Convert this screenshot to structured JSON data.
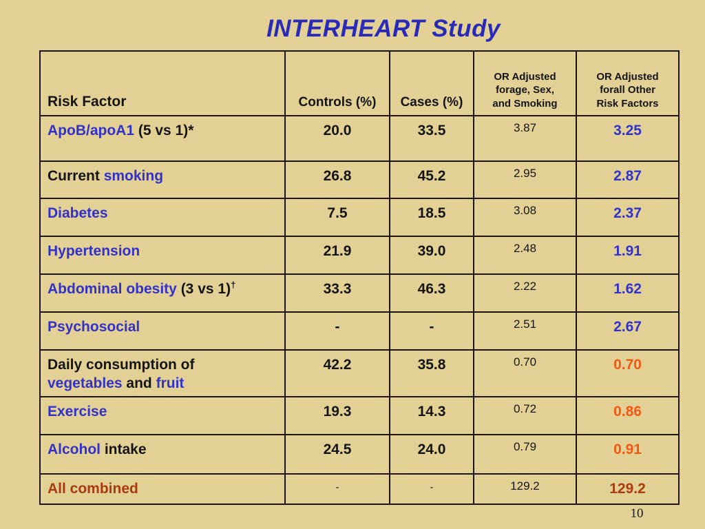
{
  "slide": {
    "title": "INTERHEART Study",
    "page_number": "10",
    "colors": {
      "background": "#e2d094",
      "title_blue": "#2a2ab8",
      "text_blue": "#3232c8",
      "orange": "#f05a14",
      "dark_red": "#a83c10",
      "black": "#141414",
      "border": "#1c1408"
    }
  },
  "table": {
    "headers": {
      "risk_factor": "Risk Factor",
      "controls": "Controls (%)",
      "cases": "Cases (%)",
      "or_age_sex_smoking": "OR Adjusted\nforage, Sex,\nand Smoking",
      "or_other": "OR Adjusted\nforall Other\nRisk Factors"
    },
    "rows": [
      {
        "label": [
          {
            "t": "ApoB/apoA1",
            "c": "blue"
          },
          {
            "t": " (5 vs 1)*",
            "c": "black"
          }
        ],
        "controls": "20.0",
        "cases": "33.5",
        "or1": "3.87",
        "or2": "3.25",
        "or2_color": "blue"
      },
      {
        "label": [
          {
            "t": "Current ",
            "c": "black"
          },
          {
            "t": "smoking",
            "c": "blue"
          }
        ],
        "controls": "26.8",
        "cases": "45.2",
        "or1": "2.95",
        "or2": "2.87",
        "or2_color": "blue"
      },
      {
        "label": [
          {
            "t": "Diabetes",
            "c": "blue"
          }
        ],
        "controls": "7.5",
        "cases": "18.5",
        "or1": "3.08",
        "or2": "2.37",
        "or2_color": "blue"
      },
      {
        "label": [
          {
            "t": "Hypertension",
            "c": "blue"
          }
        ],
        "controls": "21.9",
        "cases": "39.0",
        "or1": "2.48",
        "or2": "1.91",
        "or2_color": "blue"
      },
      {
        "label": [
          {
            "t": "Abdominal obesity",
            "c": "blue"
          },
          {
            "t": " (3 vs 1)",
            "c": "black"
          },
          {
            "t": "†",
            "c": "black",
            "sup": true
          }
        ],
        "controls": "33.3",
        "cases": "46.3",
        "or1": "2.22",
        "or2": "1.62",
        "or2_color": "blue"
      },
      {
        "label": [
          {
            "t": "Psychosocial",
            "c": "blue"
          }
        ],
        "controls": "-",
        "cases": "-",
        "or1": "2.51",
        "or2": "2.67",
        "or2_color": "blue"
      },
      {
        "label": [
          {
            "t": "Daily consumption of",
            "c": "black"
          },
          {
            "br": true
          },
          {
            "t": "vegetables",
            "c": "blue"
          },
          {
            "t": " and ",
            "c": "black"
          },
          {
            "t": "fruit",
            "c": "blue"
          }
        ],
        "controls": "42.2",
        "cases": "35.8",
        "or1": "0.70",
        "or2": "0.70",
        "or2_color": "orange"
      },
      {
        "label": [
          {
            "t": "Exercise",
            "c": "blue"
          }
        ],
        "controls": "19.3",
        "cases": "14.3",
        "or1": "0.72",
        "or2": "0.86",
        "or2_color": "orange"
      },
      {
        "label": [
          {
            "t": "Alcohol",
            "c": "blue"
          },
          {
            "t": " intake",
            "c": "black"
          }
        ],
        "controls": "24.5",
        "cases": "24.0",
        "or1": "0.79",
        "or2": "0.91",
        "or2_color": "orange"
      },
      {
        "label": [
          {
            "t": "All combined",
            "c": "darkred"
          }
        ],
        "controls": "-",
        "cases": "-",
        "controls_style": "small",
        "cases_style": "small",
        "or1": "129.2",
        "or2": "129.2",
        "or2_color": "darkred"
      }
    ]
  }
}
